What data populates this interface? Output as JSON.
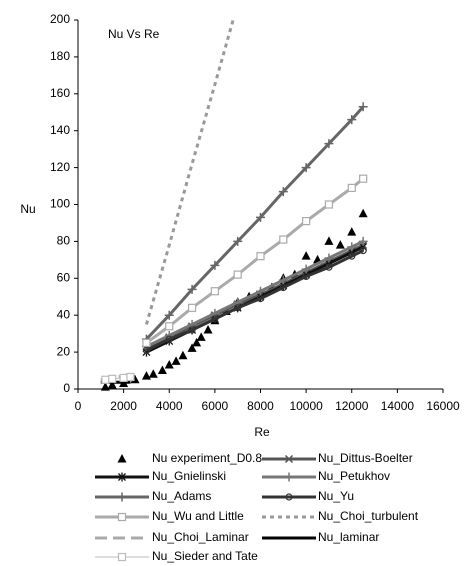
{
  "chart_data": {
    "type": "line",
    "title": "Nu Vs Re",
    "x_label": "Re",
    "y_label": "Nu",
    "xlim": [
      0,
      16000
    ],
    "ylim": [
      0,
      200
    ],
    "xticks": [
      0,
      2000,
      4000,
      6000,
      8000,
      10000,
      12000,
      14000,
      16000
    ],
    "yticks": [
      0,
      20,
      40,
      60,
      80,
      100,
      120,
      140,
      160,
      180,
      200
    ],
    "grid": false,
    "series": [
      {
        "name": "Nu experiment_D0.8",
        "color": "#000000",
        "marker": "triangle",
        "line": false,
        "x": [
          1200,
          1500,
          2000,
          2500,
          3000,
          3300,
          3700,
          4000,
          4300,
          4600,
          5000,
          5200,
          5400,
          5700,
          6000,
          6500,
          7000,
          7500,
          8000,
          8500,
          9000,
          9500,
          10000,
          10500,
          11000,
          11500,
          12000,
          12500
        ],
        "values": [
          1,
          2,
          3,
          5,
          7,
          8,
          10,
          13,
          15,
          18,
          22,
          25,
          28,
          32,
          37,
          42,
          47,
          50,
          52,
          55,
          60,
          62,
          72,
          70,
          80,
          78,
          85,
          95
        ]
      },
      {
        "name": "Nu_Dittus-Boelter",
        "color": "#555555",
        "marker": "x",
        "line": true,
        "x": [
          3000,
          4000,
          5000,
          6000,
          7000,
          8000,
          9000,
          10000,
          11000,
          12000,
          12500
        ],
        "values": [
          22,
          28,
          34,
          40,
          46,
          51,
          57,
          63,
          69,
          75,
          78
        ]
      },
      {
        "name": "Nu_Gnielinski",
        "color": "#111111",
        "marker": "asterisk",
        "line": true,
        "x": [
          3000,
          4000,
          5000,
          6000,
          7000,
          8000,
          9000,
          10000,
          11000,
          12000,
          12500
        ],
        "values": [
          20,
          26,
          32,
          38,
          44,
          50,
          56,
          62,
          68,
          74,
          77
        ]
      },
      {
        "name": "Nu_Petukhov",
        "color": "#777777",
        "marker": "plus",
        "line": true,
        "x": [
          3000,
          4000,
          5000,
          6000,
          7000,
          8000,
          9000,
          10000,
          11000,
          12000,
          12500
        ],
        "values": [
          23,
          29,
          35,
          41,
          47,
          53,
          59,
          65,
          71,
          77,
          80
        ]
      },
      {
        "name": "Nu_Adams",
        "color": "#666666",
        "marker": "plus",
        "line": true,
        "x": [
          3000,
          4000,
          5000,
          6000,
          7000,
          8000,
          9000,
          10000,
          11000,
          12000,
          12500
        ],
        "values": [
          27,
          40,
          54,
          67,
          80,
          93,
          107,
          120,
          133,
          146,
          153
        ]
      },
      {
        "name": "Nu_Yu",
        "color": "#333333",
        "marker": "circle",
        "line": true,
        "x": [
          3000,
          4000,
          5000,
          6000,
          7000,
          8000,
          9000,
          10000,
          11000,
          12000,
          12500
        ],
        "values": [
          21,
          27,
          32,
          38,
          44,
          49,
          55,
          61,
          66,
          72,
          75
        ]
      },
      {
        "name": "Nu_Wu and Little",
        "color": "#aaaaaa",
        "marker": "square",
        "line": true,
        "x": [
          3000,
          4000,
          5000,
          6000,
          7000,
          8000,
          9000,
          10000,
          11000,
          12000,
          12500
        ],
        "values": [
          25,
          34,
          44,
          53,
          62,
          72,
          81,
          91,
          100,
          109,
          114
        ]
      },
      {
        "name": "Nu_Choi_turbulent",
        "color": "#999999",
        "marker": "none",
        "line": true,
        "dash": "4,4",
        "x": [
          3000,
          4000,
          5000,
          6000,
          6800
        ],
        "values": [
          35,
          78,
          122,
          165,
          200
        ]
      },
      {
        "name": "Nu_Choi_Laminar",
        "color": "#aaaaaa",
        "marker": "none",
        "line": true,
        "dash": "12,6",
        "x": [
          1000,
          1500,
          2000,
          2300
        ],
        "values": [
          5,
          6,
          7,
          8
        ]
      },
      {
        "name": "Nu_laminar",
        "color": "#000000",
        "marker": "none",
        "line": true,
        "x": [
          1000,
          2300
        ],
        "values": [
          3.66,
          3.66
        ]
      },
      {
        "name": "Nu_Sieder and Tate",
        "color": "#bbbbbb",
        "marker": "square",
        "line": true,
        "thin": true,
        "x": [
          1200,
          1500,
          2000,
          2300
        ],
        "values": [
          5,
          5.5,
          6,
          6.5
        ]
      }
    ]
  }
}
